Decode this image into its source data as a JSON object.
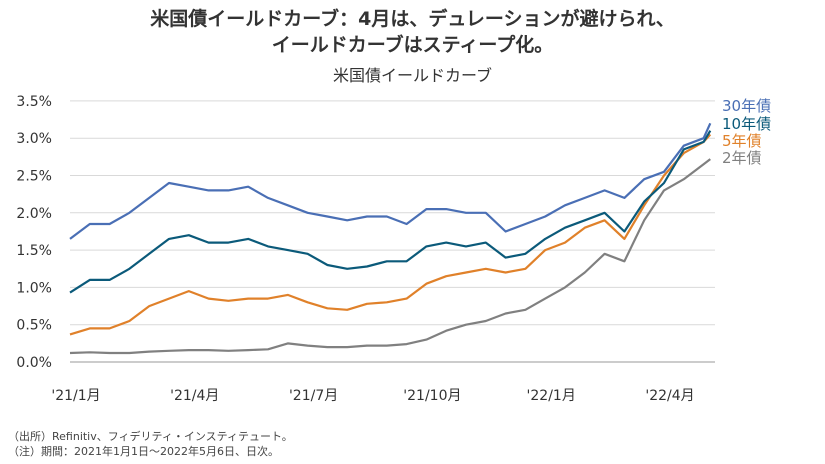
{
  "chart_data": {
    "type": "line",
    "title": "米国債イールドカーブ：4月は、デュレーションが避けられ、",
    "title_line2": "イールドカーブはスティープ化。",
    "subtitle": "米国債イールドカーブ",
    "xlabel": "",
    "ylabel": "",
    "ylim": [
      0,
      3.5
    ],
    "yticks": [
      "0.0%",
      "0.5%",
      "1.0%",
      "1.5%",
      "2.0%",
      "2.5%",
      "3.0%",
      "3.5%"
    ],
    "xticks": [
      {
        "m": 0,
        "label": "'21/1月"
      },
      {
        "m": 3,
        "label": "'21/4月"
      },
      {
        "m": 6,
        "label": "'21/7月"
      },
      {
        "m": 9,
        "label": "'21/10月"
      },
      {
        "m": 12,
        "label": "'22/1月"
      },
      {
        "m": 15,
        "label": "'22/4月"
      }
    ],
    "x_note": "months since 2021-01-01, semi-monthly samples",
    "x": [
      0,
      0.5,
      1,
      1.5,
      2,
      2.5,
      3,
      3.5,
      4,
      4.5,
      5,
      5.5,
      6,
      6.5,
      7,
      7.5,
      8,
      8.5,
      9,
      9.5,
      10,
      10.5,
      11,
      11.5,
      12,
      12.5,
      13,
      13.5,
      14,
      14.5,
      15,
      15.5,
      16,
      16.17
    ],
    "grid": true,
    "legend": "right",
    "series": [
      {
        "name": "30年債",
        "color": "#4a6fb5",
        "values": [
          1.65,
          1.85,
          1.85,
          2.0,
          2.2,
          2.4,
          2.35,
          2.3,
          2.3,
          2.35,
          2.2,
          2.1,
          2.0,
          1.95,
          1.9,
          1.95,
          1.95,
          1.85,
          2.05,
          2.05,
          2.0,
          2.0,
          1.75,
          1.85,
          1.95,
          2.1,
          2.2,
          2.3,
          2.2,
          2.45,
          2.55,
          2.9,
          3.0,
          3.2
        ]
      },
      {
        "name": "10年債",
        "color": "#0b5a7a",
        "values": [
          0.93,
          1.1,
          1.1,
          1.25,
          1.45,
          1.65,
          1.7,
          1.6,
          1.6,
          1.65,
          1.55,
          1.5,
          1.45,
          1.3,
          1.25,
          1.28,
          1.35,
          1.35,
          1.55,
          1.6,
          1.55,
          1.6,
          1.4,
          1.45,
          1.65,
          1.8,
          1.9,
          2.0,
          1.75,
          2.15,
          2.4,
          2.85,
          2.95,
          3.1
        ]
      },
      {
        "name": "5年債",
        "color": "#e0812a",
        "values": [
          0.37,
          0.45,
          0.45,
          0.55,
          0.75,
          0.85,
          0.95,
          0.85,
          0.82,
          0.85,
          0.85,
          0.9,
          0.8,
          0.72,
          0.7,
          0.78,
          0.8,
          0.85,
          1.05,
          1.15,
          1.2,
          1.25,
          1.2,
          1.25,
          1.5,
          1.6,
          1.8,
          1.9,
          1.65,
          2.1,
          2.5,
          2.8,
          2.95,
          3.05
        ]
      },
      {
        "name": "2年債",
        "color": "#808080",
        "values": [
          0.12,
          0.13,
          0.12,
          0.12,
          0.14,
          0.15,
          0.16,
          0.16,
          0.15,
          0.16,
          0.17,
          0.25,
          0.22,
          0.2,
          0.2,
          0.22,
          0.22,
          0.24,
          0.3,
          0.42,
          0.5,
          0.55,
          0.65,
          0.7,
          0.85,
          1.0,
          1.2,
          1.45,
          1.35,
          1.9,
          2.3,
          2.45,
          2.65,
          2.72
        ]
      }
    ]
  },
  "notes": [
    "（出所）Refinitiv、フィデリティ・インスティテュート。",
    "（注）期間：2021年1月1日～2022年5月6日、日次。"
  ]
}
